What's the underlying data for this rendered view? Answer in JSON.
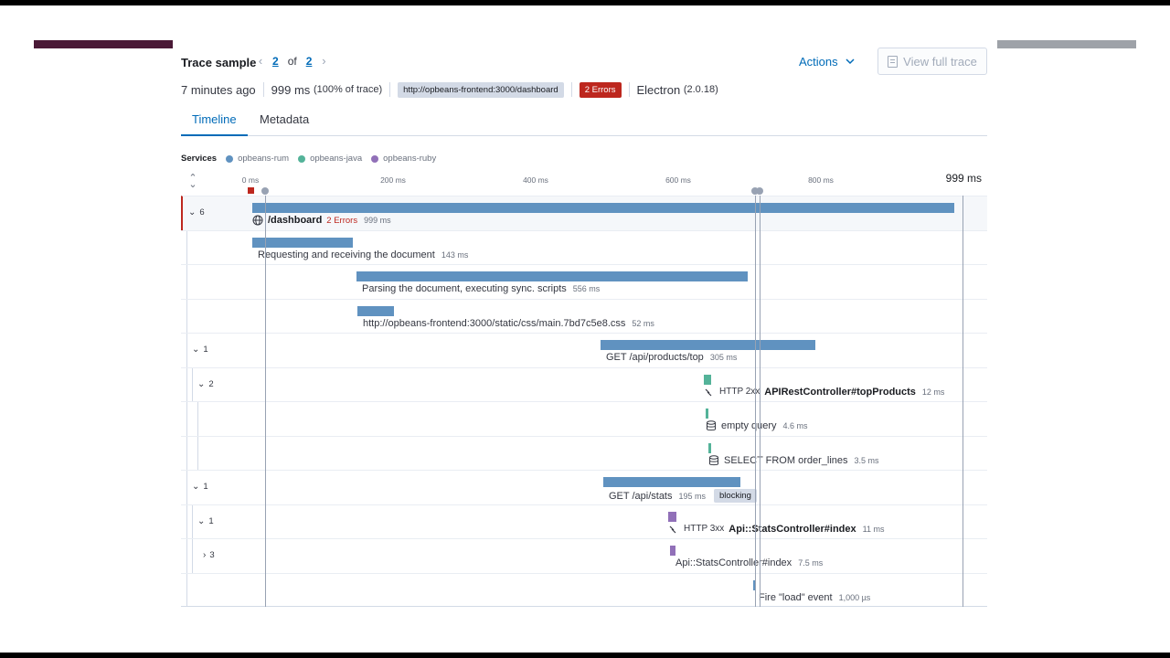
{
  "header": {
    "title": "Trace sample",
    "current_page": "2",
    "of_label": "of",
    "total_pages": "2",
    "actions_label": "Actions",
    "view_full_label": "View full trace"
  },
  "meta": {
    "age": "7 minutes ago",
    "duration": "999 ms",
    "percent": "(100% of trace)",
    "url": "http://opbeans-frontend:3000/dashboard",
    "errors_badge": "2 Errors",
    "agent": "Electron",
    "agent_version": "(2.0.18)"
  },
  "tabs": [
    "Timeline",
    "Metadata"
  ],
  "legend": {
    "label": "Services",
    "services": [
      {
        "name": "opbeans-rum",
        "color": "#6092c0"
      },
      {
        "name": "opbeans-java",
        "color": "#54b399"
      },
      {
        "name": "opbeans-ruby",
        "color": "#9170b8"
      }
    ]
  },
  "axis": {
    "ticks": [
      "0 ms",
      "200 ms",
      "400 ms",
      "600 ms",
      "800 ms"
    ],
    "max_label": "999 ms"
  },
  "rows": [
    {
      "toggle": "6",
      "name": "/dashboard",
      "errors": "2 Errors",
      "duration": "999 ms",
      "icon": "globe-icon",
      "bold": true
    },
    {
      "name": "Requesting and receiving the document",
      "duration": "143 ms"
    },
    {
      "name": "Parsing the document, executing sync. scripts",
      "duration": "556 ms"
    },
    {
      "name": "http://opbeans-frontend:3000/static/css/main.7bd7c5e8.css",
      "duration": "52 ms"
    },
    {
      "toggle": "1",
      "name": "GET /api/products/top",
      "duration": "305 ms"
    },
    {
      "toggle": "2",
      "status": "HTTP 2xx",
      "name": "APIRestController#topProducts",
      "duration": "12 ms",
      "icon": "http-icon",
      "bold": true
    },
    {
      "name": "empty query",
      "duration": "4.6 ms",
      "icon": "database-icon"
    },
    {
      "name": "SELECT FROM order_lines",
      "duration": "3.5 ms",
      "icon": "database-icon"
    },
    {
      "toggle": "1",
      "name": "GET /api/stats",
      "duration": "195 ms",
      "badge": "blocking"
    },
    {
      "toggle": "1",
      "status": "HTTP 3xx",
      "name": "Api::StatsController#index",
      "duration": "11 ms",
      "icon": "http-icon",
      "bold": true
    },
    {
      "toggle": "3",
      "name": "Api::StatsController#index",
      "duration": "7.5 ms"
    },
    {
      "name": "Fire \"load\" event",
      "duration": "1,000 µs"
    }
  ]
}
